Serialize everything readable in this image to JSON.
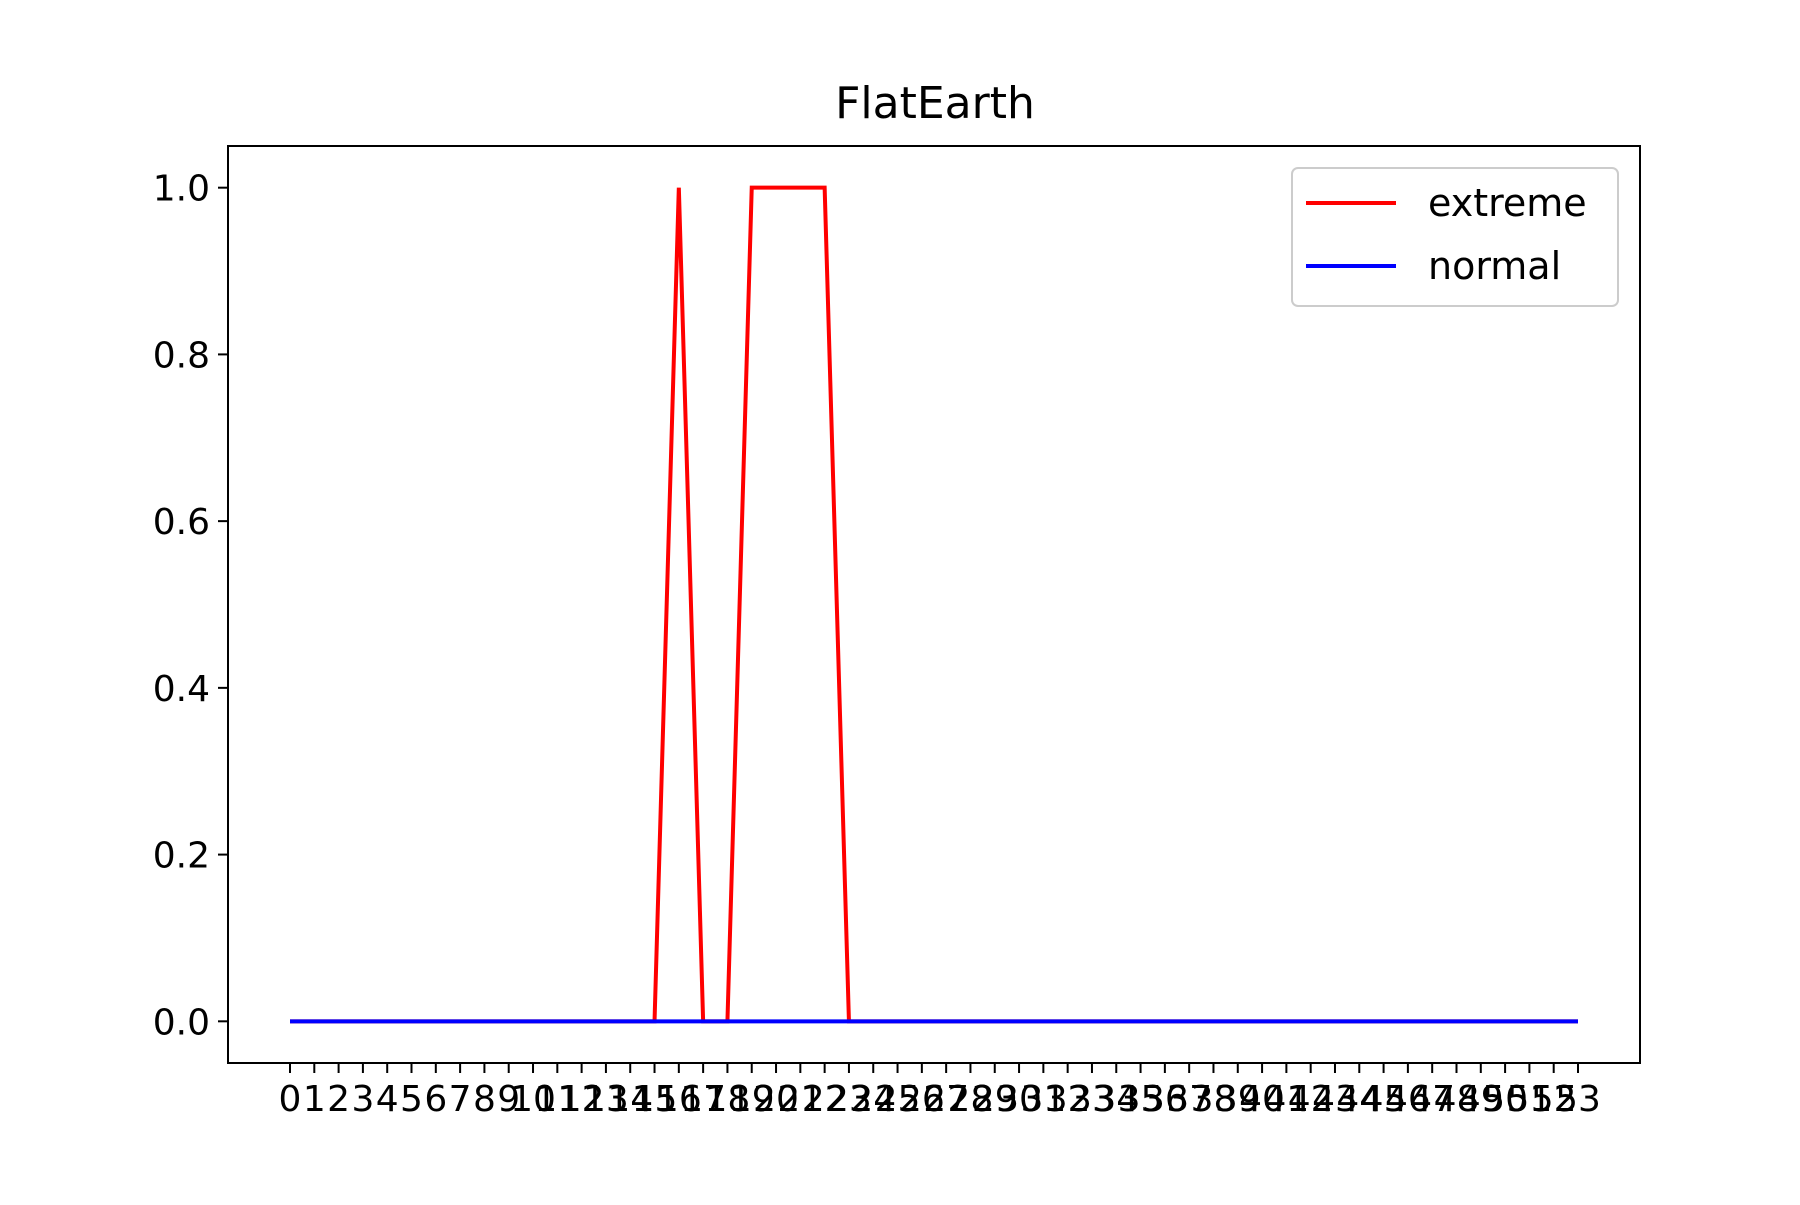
{
  "chart_data": {
    "type": "line",
    "title": "FlatEarth",
    "xlabel": "",
    "ylabel": "",
    "ylim": [
      -0.05,
      1.05
    ],
    "yticks": [
      "0.0",
      "0.2",
      "0.4",
      "0.6",
      "0.8",
      "1.0"
    ],
    "ytick_values": [
      0.0,
      0.2,
      0.4,
      0.6,
      0.8,
      1.0
    ],
    "x": [
      0,
      1,
      2,
      3,
      4,
      5,
      6,
      7,
      8,
      9,
      10,
      11,
      12,
      13,
      14,
      15,
      16,
      17,
      18,
      19,
      20,
      21,
      22,
      23,
      24,
      25,
      26,
      27,
      28,
      29,
      30,
      31,
      32,
      33,
      34,
      35,
      36,
      37,
      38,
      39,
      40,
      41,
      42,
      43,
      44,
      45,
      46,
      47,
      48,
      49,
      50,
      51,
      52,
      53
    ],
    "xticks": [
      "0",
      "1",
      "2",
      "3",
      "4",
      "5",
      "6",
      "7",
      "8",
      "9",
      "10",
      "11",
      "12",
      "13",
      "14",
      "15",
      "16",
      "17",
      "18",
      "19",
      "20",
      "21",
      "22",
      "23",
      "24",
      "25",
      "26",
      "27",
      "28",
      "29",
      "30",
      "31",
      "32",
      "33",
      "34",
      "35",
      "36",
      "37",
      "38",
      "39",
      "40",
      "41",
      "42",
      "43",
      "44",
      "45",
      "46",
      "47",
      "48",
      "49",
      "50",
      "51",
      "52",
      "53"
    ],
    "grid": false,
    "legend_position": "top-right",
    "series": [
      {
        "name": "extreme",
        "color": "#ff0000",
        "values": [
          0,
          0,
          0,
          0,
          0,
          0,
          0,
          0,
          0,
          0,
          0,
          0,
          0,
          0,
          0,
          0,
          1,
          0,
          0,
          1,
          1,
          1,
          1,
          0,
          0,
          0,
          0,
          0,
          0,
          0,
          0,
          0,
          0,
          0,
          0,
          0,
          0,
          0,
          0,
          0,
          0,
          0,
          0,
          0,
          0,
          0,
          0,
          0,
          0,
          0,
          0,
          0,
          0,
          0
        ]
      },
      {
        "name": "normal",
        "color": "#0000ff",
        "values": [
          0,
          0,
          0,
          0,
          0,
          0,
          0,
          0,
          0,
          0,
          0,
          0,
          0,
          0,
          0,
          0,
          0,
          0,
          0,
          0,
          0,
          0,
          0,
          0,
          0,
          0,
          0,
          0,
          0,
          0,
          0,
          0,
          0,
          0,
          0,
          0,
          0,
          0,
          0,
          0,
          0,
          0,
          0,
          0,
          0,
          0,
          0,
          0,
          0,
          0,
          0,
          0,
          0,
          0
        ]
      }
    ]
  }
}
